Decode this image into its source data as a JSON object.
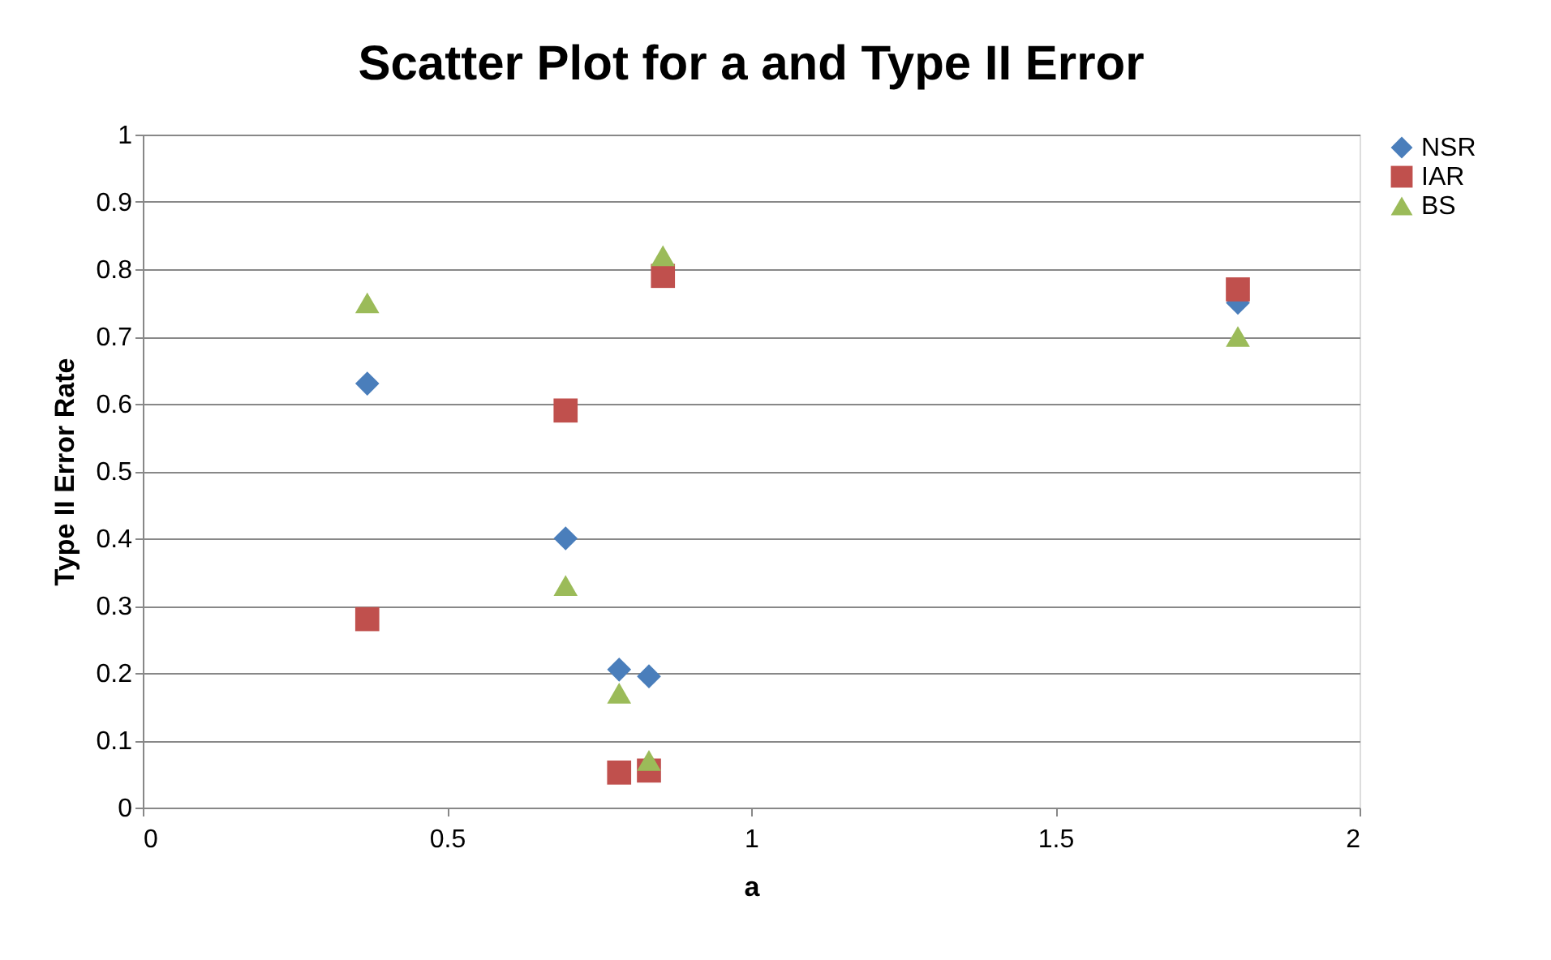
{
  "chart_data": {
    "type": "scatter",
    "title": "Scatter Plot for a and Type II Error",
    "xlabel": "a",
    "ylabel": "Type II Error Rate",
    "x": [
      0.369,
      0.695,
      0.783,
      0.832,
      0.855,
      1.8
    ],
    "series": [
      {
        "name": "NSR",
        "color": "#4a7ebb",
        "marker": "diamond",
        "values": [
          0.63,
          0.4,
          0.205,
          0.195,
          null,
          0.75
        ]
      },
      {
        "name": "IAR",
        "color": "#c0504d",
        "marker": "square",
        "values": [
          0.28,
          0.59,
          0.052,
          0.055,
          0.79,
          0.77
        ]
      },
      {
        "name": "BS",
        "color": "#9bbb59",
        "marker": "triangle",
        "values": [
          0.75,
          0.33,
          0.17,
          0.07,
          0.82,
          0.7
        ]
      }
    ],
    "xlim": [
      0,
      2
    ],
    "xticks": [
      0,
      0.5,
      1,
      1.5,
      2
    ],
    "ylim": [
      0,
      1
    ],
    "yticks": [
      0,
      0.1,
      0.2,
      0.3,
      0.4,
      0.5,
      0.6,
      0.7,
      0.8,
      0.9,
      1
    ],
    "grid": "y",
    "legend": "right"
  }
}
